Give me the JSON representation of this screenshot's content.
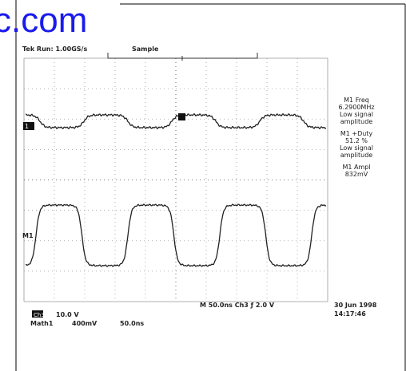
{
  "watermark": "c.com",
  "header": {
    "status": "Tek Run: 1.00GS/s",
    "mode": "Sample"
  },
  "markers": {
    "ch1": "1",
    "math": "M1"
  },
  "measurements": [
    {
      "lines": [
        "M1 Freq",
        "6.2900MHz",
        "Low signal",
        "amplitude"
      ]
    },
    {
      "lines": [
        "M1 +Duty",
        "51.2 %",
        "Low signal",
        "amplitude"
      ]
    },
    {
      "lines": [
        "M1 Ampl",
        "832mV"
      ]
    }
  ],
  "footer": {
    "timebase": "M 50.0ns  Ch3 ƒ   2.0 V",
    "date": "30 Jun 1998",
    "time": "14:17:46",
    "ch3": "Ch3",
    "ch3_scale": "10.0 V",
    "math": "Math1",
    "math_scale": "400mV",
    "math_time": "50.0ns"
  }
}
